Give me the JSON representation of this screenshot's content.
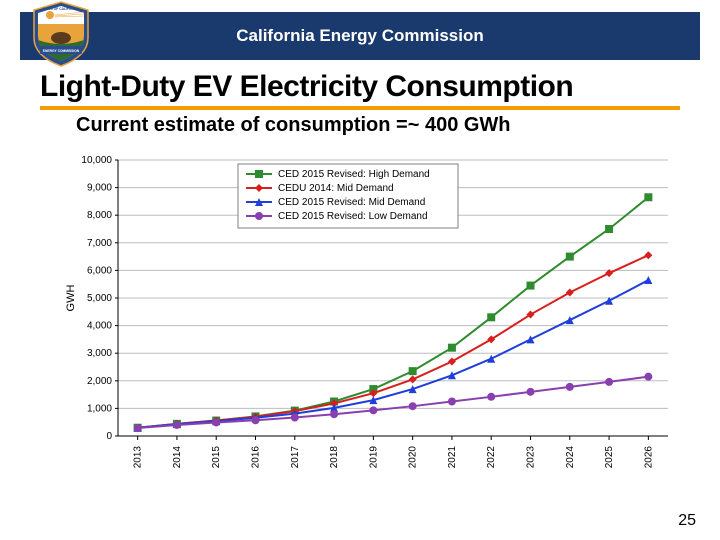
{
  "header": {
    "title": "California Energy Commission"
  },
  "seal": {
    "top_text": "STATE OF CALIFORNIA",
    "bottom_text": "ENERGY COMMISSION",
    "colors": {
      "blue": "#2a4d8f",
      "gold": "#e8a43a",
      "brown": "#5b3a1e",
      "green": "#2e6b2e",
      "white": "#ffffff"
    }
  },
  "slide_title": "Light-Duty EV Electricity Consumption",
  "subtitle": "Current estimate of consumption =~ 400 GWh",
  "page_number": "25",
  "chart": {
    "type": "line",
    "ylabel": "GWH",
    "ylim": [
      0,
      10000
    ],
    "ytick_step": 1000,
    "yticks_labels": [
      "0",
      "1,000",
      "2,000",
      "3,000",
      "4,000",
      "5,000",
      "6,000",
      "7,000",
      "8,000",
      "9,000",
      "10,000"
    ],
    "categories": [
      "2013",
      "2014",
      "2015",
      "2016",
      "2017",
      "2018",
      "2019",
      "2020",
      "2021",
      "2022",
      "2023",
      "2024",
      "2025",
      "2026"
    ],
    "grid_color": "#bdbdbd",
    "background_color": "#ffffff",
    "axis_font_size": 10,
    "line_width": 2,
    "marker_size": 4,
    "legend": {
      "position": "top-center",
      "border_color": "#808080",
      "items": [
        {
          "label": "CED 2015 Revised: High Demand",
          "color": "#2e8b2e",
          "marker": "square"
        },
        {
          "label": "CEDU 2014: Mid Demand",
          "color": "#d91e1e",
          "marker": "diamond"
        },
        {
          "label": "CED 2015 Revised: Mid Demand",
          "color": "#1e3fd9",
          "marker": "triangle"
        },
        {
          "label": "CED 2015 Revised: Low Demand",
          "color": "#8a3fb0",
          "marker": "circle"
        }
      ]
    },
    "series": [
      {
        "name": "high",
        "color": "#2e8b2e",
        "marker": "square",
        "values": [
          300,
          440,
          560,
          710,
          920,
          1250,
          1700,
          2350,
          3200,
          4300,
          5450,
          6500,
          7500,
          8650
        ]
      },
      {
        "name": "mid14",
        "color": "#d91e1e",
        "marker": "diamond",
        "values": [
          300,
          440,
          560,
          700,
          900,
          1180,
          1550,
          2050,
          2700,
          3500,
          4400,
          5200,
          5900,
          6550
        ]
      },
      {
        "name": "mid15",
        "color": "#1e3fd9",
        "marker": "triangle",
        "values": [
          300,
          430,
          540,
          660,
          810,
          1020,
          1300,
          1700,
          2200,
          2800,
          3500,
          4200,
          4900,
          5650
        ]
      },
      {
        "name": "low",
        "color": "#8a3fb0",
        "marker": "circle",
        "values": [
          290,
          400,
          490,
          570,
          670,
          790,
          930,
          1080,
          1250,
          1420,
          1600,
          1780,
          1960,
          2150
        ]
      }
    ]
  },
  "colors": {
    "header_bg": "#1a3a6e",
    "accent_orange": "#f59c00"
  }
}
